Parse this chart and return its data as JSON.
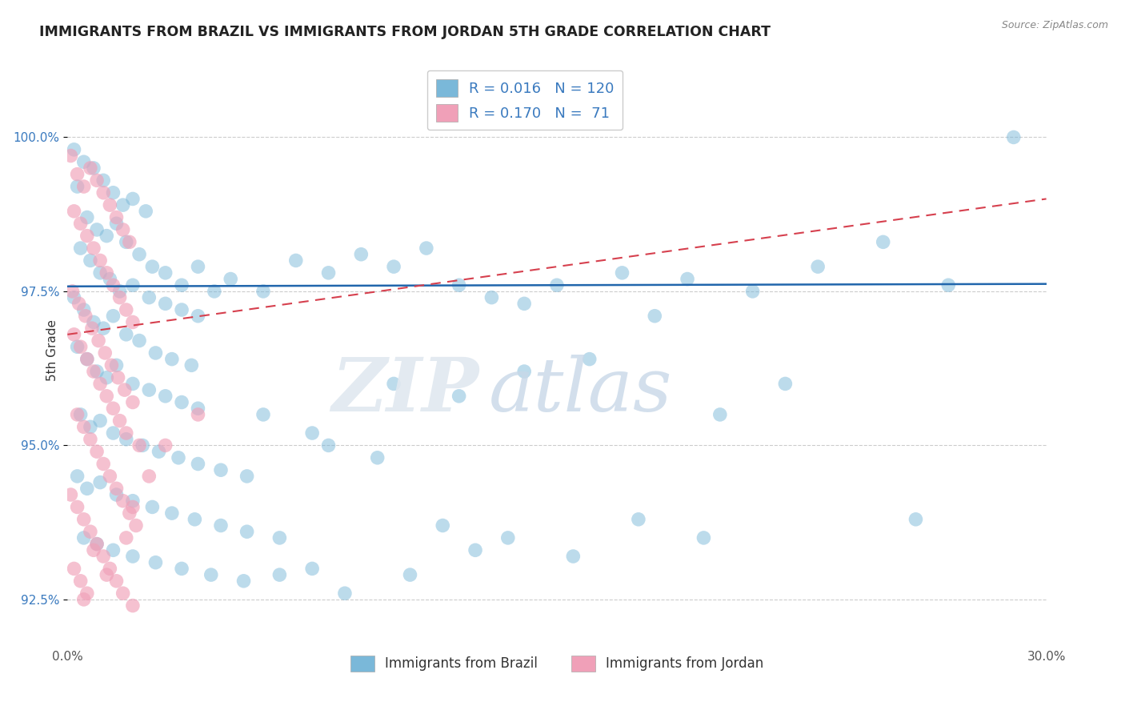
{
  "title": "IMMIGRANTS FROM BRAZIL VS IMMIGRANTS FROM JORDAN 5TH GRADE CORRELATION CHART",
  "source": "Source: ZipAtlas.com",
  "ylabel": "5th Grade",
  "brazil_R": "0.016",
  "brazil_N": "120",
  "jordan_R": "0.170",
  "jordan_N": "71",
  "brazil_color": "#7ab8d9",
  "jordan_color": "#f0a0b8",
  "brazil_trend_color": "#2166ac",
  "jordan_trend_color": "#d6404e",
  "xlim": [
    0.0,
    30.0
  ],
  "ylim": [
    91.8,
    101.3
  ],
  "ytick_vals": [
    92.5,
    95.0,
    97.5,
    100.0
  ],
  "ytick_labels": [
    "92.5%",
    "95.0%",
    "97.5%",
    "100.0%"
  ],
  "brazil_scatter": [
    [
      0.2,
      99.8
    ],
    [
      0.5,
      99.6
    ],
    [
      0.8,
      99.5
    ],
    [
      1.1,
      99.3
    ],
    [
      1.4,
      99.1
    ],
    [
      1.7,
      98.9
    ],
    [
      2.0,
      99.0
    ],
    [
      2.4,
      98.8
    ],
    [
      0.3,
      99.2
    ],
    [
      0.6,
      98.7
    ],
    [
      0.9,
      98.5
    ],
    [
      1.2,
      98.4
    ],
    [
      1.5,
      98.6
    ],
    [
      1.8,
      98.3
    ],
    [
      2.2,
      98.1
    ],
    [
      2.6,
      97.9
    ],
    [
      3.0,
      97.8
    ],
    [
      3.5,
      97.6
    ],
    [
      4.0,
      97.9
    ],
    [
      4.5,
      97.5
    ],
    [
      0.4,
      98.2
    ],
    [
      0.7,
      98.0
    ],
    [
      1.0,
      97.8
    ],
    [
      1.3,
      97.7
    ],
    [
      1.6,
      97.5
    ],
    [
      2.0,
      97.6
    ],
    [
      2.5,
      97.4
    ],
    [
      3.0,
      97.3
    ],
    [
      3.5,
      97.2
    ],
    [
      4.0,
      97.1
    ],
    [
      0.2,
      97.4
    ],
    [
      0.5,
      97.2
    ],
    [
      0.8,
      97.0
    ],
    [
      1.1,
      96.9
    ],
    [
      1.4,
      97.1
    ],
    [
      1.8,
      96.8
    ],
    [
      2.2,
      96.7
    ],
    [
      2.7,
      96.5
    ],
    [
      3.2,
      96.4
    ],
    [
      3.8,
      96.3
    ],
    [
      0.3,
      96.6
    ],
    [
      0.6,
      96.4
    ],
    [
      0.9,
      96.2
    ],
    [
      1.2,
      96.1
    ],
    [
      1.5,
      96.3
    ],
    [
      2.0,
      96.0
    ],
    [
      2.5,
      95.9
    ],
    [
      3.0,
      95.8
    ],
    [
      3.5,
      95.7
    ],
    [
      4.0,
      95.6
    ],
    [
      0.4,
      95.5
    ],
    [
      0.7,
      95.3
    ],
    [
      1.0,
      95.4
    ],
    [
      1.4,
      95.2
    ],
    [
      1.8,
      95.1
    ],
    [
      2.3,
      95.0
    ],
    [
      2.8,
      94.9
    ],
    [
      3.4,
      94.8
    ],
    [
      4.0,
      94.7
    ],
    [
      4.7,
      94.6
    ],
    [
      0.3,
      94.5
    ],
    [
      0.6,
      94.3
    ],
    [
      1.0,
      94.4
    ],
    [
      1.5,
      94.2
    ],
    [
      2.0,
      94.1
    ],
    [
      2.6,
      94.0
    ],
    [
      3.2,
      93.9
    ],
    [
      3.9,
      93.8
    ],
    [
      4.7,
      93.7
    ],
    [
      5.5,
      93.6
    ],
    [
      0.5,
      93.5
    ],
    [
      0.9,
      93.4
    ],
    [
      1.4,
      93.3
    ],
    [
      2.0,
      93.2
    ],
    [
      2.7,
      93.1
    ],
    [
      3.5,
      93.0
    ],
    [
      4.4,
      92.9
    ],
    [
      5.4,
      92.8
    ],
    [
      6.5,
      92.9
    ],
    [
      7.5,
      93.0
    ],
    [
      5.0,
      97.7
    ],
    [
      6.0,
      97.5
    ],
    [
      7.0,
      98.0
    ],
    [
      8.0,
      97.8
    ],
    [
      9.0,
      98.1
    ],
    [
      10.0,
      97.9
    ],
    [
      11.0,
      98.2
    ],
    [
      12.0,
      97.6
    ],
    [
      13.0,
      97.4
    ],
    [
      14.0,
      97.3
    ],
    [
      15.0,
      97.6
    ],
    [
      17.0,
      97.8
    ],
    [
      19.0,
      97.7
    ],
    [
      21.0,
      97.5
    ],
    [
      23.0,
      97.9
    ],
    [
      25.0,
      98.3
    ],
    [
      27.0,
      97.6
    ],
    [
      29.0,
      100.0
    ],
    [
      6.0,
      95.5
    ],
    [
      8.0,
      95.0
    ],
    [
      10.0,
      96.0
    ],
    [
      12.0,
      95.8
    ],
    [
      14.0,
      96.2
    ],
    [
      16.0,
      96.4
    ],
    [
      18.0,
      97.1
    ],
    [
      20.0,
      95.5
    ],
    [
      22.0,
      96.0
    ],
    [
      26.0,
      93.8
    ],
    [
      5.5,
      94.5
    ],
    [
      7.5,
      95.2
    ],
    [
      9.5,
      94.8
    ],
    [
      11.5,
      93.7
    ],
    [
      13.5,
      93.5
    ],
    [
      15.5,
      93.2
    ],
    [
      17.5,
      93.8
    ],
    [
      19.5,
      93.5
    ],
    [
      6.5,
      93.5
    ],
    [
      8.5,
      92.6
    ],
    [
      10.5,
      92.9
    ],
    [
      12.5,
      93.3
    ]
  ],
  "jordan_scatter": [
    [
      0.1,
      99.7
    ],
    [
      0.3,
      99.4
    ],
    [
      0.5,
      99.2
    ],
    [
      0.7,
      99.5
    ],
    [
      0.9,
      99.3
    ],
    [
      1.1,
      99.1
    ],
    [
      1.3,
      98.9
    ],
    [
      1.5,
      98.7
    ],
    [
      1.7,
      98.5
    ],
    [
      1.9,
      98.3
    ],
    [
      0.2,
      98.8
    ],
    [
      0.4,
      98.6
    ],
    [
      0.6,
      98.4
    ],
    [
      0.8,
      98.2
    ],
    [
      1.0,
      98.0
    ],
    [
      1.2,
      97.8
    ],
    [
      1.4,
      97.6
    ],
    [
      1.6,
      97.4
    ],
    [
      1.8,
      97.2
    ],
    [
      2.0,
      97.0
    ],
    [
      0.15,
      97.5
    ],
    [
      0.35,
      97.3
    ],
    [
      0.55,
      97.1
    ],
    [
      0.75,
      96.9
    ],
    [
      0.95,
      96.7
    ],
    [
      1.15,
      96.5
    ],
    [
      1.35,
      96.3
    ],
    [
      1.55,
      96.1
    ],
    [
      1.75,
      95.9
    ],
    [
      2.0,
      95.7
    ],
    [
      0.2,
      96.8
    ],
    [
      0.4,
      96.6
    ],
    [
      0.6,
      96.4
    ],
    [
      0.8,
      96.2
    ],
    [
      1.0,
      96.0
    ],
    [
      1.2,
      95.8
    ],
    [
      1.4,
      95.6
    ],
    [
      1.6,
      95.4
    ],
    [
      1.8,
      95.2
    ],
    [
      2.2,
      95.0
    ],
    [
      0.3,
      95.5
    ],
    [
      0.5,
      95.3
    ],
    [
      0.7,
      95.1
    ],
    [
      0.9,
      94.9
    ],
    [
      1.1,
      94.7
    ],
    [
      1.3,
      94.5
    ],
    [
      1.5,
      94.3
    ],
    [
      1.7,
      94.1
    ],
    [
      1.9,
      93.9
    ],
    [
      2.1,
      93.7
    ],
    [
      0.1,
      94.2
    ],
    [
      0.3,
      94.0
    ],
    [
      0.5,
      93.8
    ],
    [
      0.7,
      93.6
    ],
    [
      0.9,
      93.4
    ],
    [
      1.1,
      93.2
    ],
    [
      1.3,
      93.0
    ],
    [
      1.5,
      92.8
    ],
    [
      1.7,
      92.6
    ],
    [
      2.0,
      92.4
    ],
    [
      0.2,
      93.0
    ],
    [
      0.4,
      92.8
    ],
    [
      0.6,
      92.6
    ],
    [
      0.8,
      93.3
    ],
    [
      1.2,
      92.9
    ],
    [
      1.8,
      93.5
    ],
    [
      2.5,
      94.5
    ],
    [
      3.0,
      95.0
    ],
    [
      2.0,
      94.0
    ],
    [
      4.0,
      95.5
    ],
    [
      0.5,
      92.5
    ]
  ]
}
